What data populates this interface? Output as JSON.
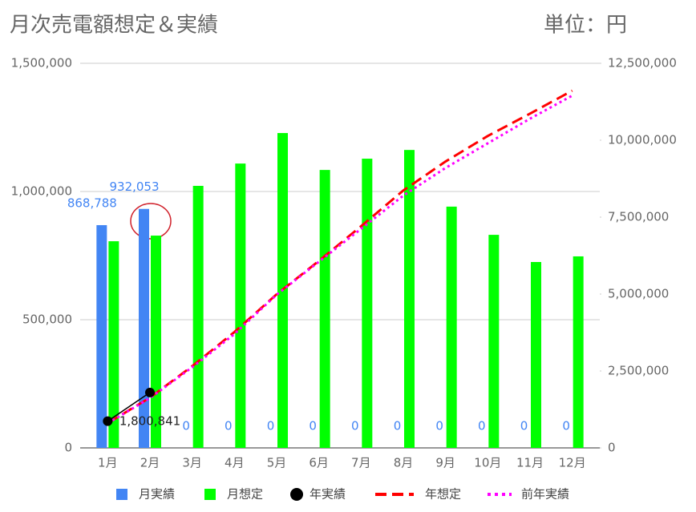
{
  "chart_data": {
    "type": "combo",
    "title": "月次売電額想定＆実績",
    "subtitle": "単位：円",
    "categories": [
      "1月",
      "2月",
      "3月",
      "4月",
      "5月",
      "6月",
      "7月",
      "8月",
      "9月",
      "10月",
      "11月",
      "12月"
    ],
    "ylim": [
      0,
      1500000
    ],
    "yticks": [
      {
        "value": 0,
        "label": "0"
      },
      {
        "value": 500000,
        "label": "500,000"
      },
      {
        "value": 1000000,
        "label": "1,000,000"
      },
      {
        "value": 1500000,
        "label": "1,500,000"
      }
    ],
    "y2lim": [
      0,
      12500000
    ],
    "y2ticks": [
      {
        "value": 0,
        "label": "0"
      },
      {
        "value": 2500000,
        "label": "2,500,000"
      },
      {
        "value": 5000000,
        "label": "5,000,000"
      },
      {
        "value": 7500000,
        "label": "7,500,000"
      },
      {
        "value": 10000000,
        "label": "10,000,000"
      },
      {
        "value": 12500000,
        "label": "12,500,000"
      }
    ],
    "grid": true,
    "legend": "bottom",
    "series": [
      {
        "name": "月実績",
        "type": "bar",
        "color": "#4285f4",
        "values": [
          868788,
          932053,
          0,
          0,
          0,
          0,
          0,
          0,
          0,
          0,
          0,
          0
        ],
        "value_labels": [
          "868,788",
          "932,053",
          "0",
          "0",
          "0",
          "0",
          "0",
          "0",
          "0",
          "0",
          "0",
          "0"
        ]
      },
      {
        "name": "月想定",
        "type": "bar",
        "color": "#00ff00",
        "values": [
          806000,
          828000,
          1022000,
          1109000,
          1228000,
          1084000,
          1128000,
          1162000,
          941000,
          831000,
          725000,
          747000
        ]
      },
      {
        "name": "年実績",
        "type": "point",
        "axis": "y2",
        "color": "#000000",
        "values": [
          868788,
          1800841,
          null,
          null,
          null,
          null,
          null,
          null,
          null,
          null,
          null,
          null
        ],
        "value_labels": [
          null,
          "1,800,841",
          null,
          null,
          null,
          null,
          null,
          null,
          null,
          null,
          null,
          null
        ]
      },
      {
        "name": "年想定",
        "type": "dashed",
        "axis": "y2",
        "color": "#ff0000",
        "values": [
          806000,
          1634000,
          2656000,
          3765000,
          4993000,
          6077000,
          7205000,
          8367000,
          9308000,
          10139000,
          10864000,
          11611000
        ]
      },
      {
        "name": "前年実績",
        "type": "dotted",
        "axis": "y2",
        "color": "#ff00ff",
        "values": [
          800000,
          1620000,
          2620000,
          3700000,
          4980000,
          6050000,
          7120000,
          8200000,
          9100000,
          9900000,
          10700000,
          11450000
        ]
      }
    ]
  }
}
